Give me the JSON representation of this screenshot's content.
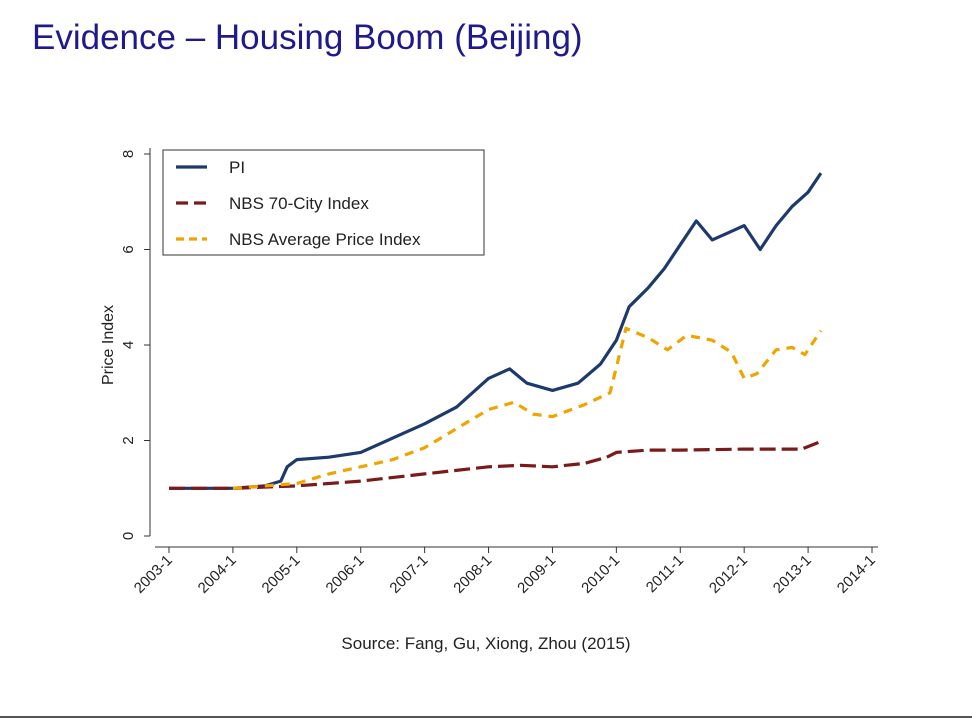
{
  "slide": {
    "title": "Evidence – Housing Boom (Beijing)",
    "source": "Source: Fang, Gu, Xiong, Zhou (2015)"
  },
  "colors": {
    "title": "#1f1a8c",
    "pi": "#1c3a6b",
    "nbs70": "#7a1a1a",
    "nbsavg": "#f0a400"
  },
  "chart_data": {
    "type": "line",
    "ylabel": "Price Index",
    "xlabel": "",
    "ylim": [
      0,
      8
    ],
    "yticks": [
      "0",
      "2",
      "4",
      "6",
      "8"
    ],
    "xticks": [
      "2003-1",
      "2004-1",
      "2005-1",
      "2006-1",
      "2007-1",
      "2008-1",
      "2009-1",
      "2010-1",
      "2011-1",
      "2012-1",
      "2013-1",
      "2014-1"
    ],
    "xlim": [
      2003.0,
      2014.0
    ],
    "legend_position": "top-left",
    "series": [
      {
        "name": "PI",
        "style": "solid",
        "color": "#1c3a6b",
        "points": [
          [
            2003.0,
            1.0
          ],
          [
            2003.5,
            1.0
          ],
          [
            2004.0,
            1.0
          ],
          [
            2004.5,
            1.05
          ],
          [
            2004.75,
            1.15
          ],
          [
            2004.85,
            1.45
          ],
          [
            2005.0,
            1.6
          ],
          [
            2005.5,
            1.65
          ],
          [
            2006.0,
            1.75
          ],
          [
            2006.5,
            2.05
          ],
          [
            2007.0,
            2.35
          ],
          [
            2007.5,
            2.7
          ],
          [
            2008.0,
            3.3
          ],
          [
            2008.33,
            3.5
          ],
          [
            2008.6,
            3.2
          ],
          [
            2009.0,
            3.05
          ],
          [
            2009.4,
            3.2
          ],
          [
            2009.75,
            3.6
          ],
          [
            2010.0,
            4.1
          ],
          [
            2010.2,
            4.8
          ],
          [
            2010.5,
            5.2
          ],
          [
            2010.75,
            5.6
          ],
          [
            2011.0,
            6.1
          ],
          [
            2011.25,
            6.6
          ],
          [
            2011.5,
            6.2
          ],
          [
            2011.75,
            6.35
          ],
          [
            2012.0,
            6.5
          ],
          [
            2012.25,
            6.0
          ],
          [
            2012.5,
            6.5
          ],
          [
            2012.75,
            6.9
          ],
          [
            2013.0,
            7.2
          ],
          [
            2013.2,
            7.6
          ]
        ]
      },
      {
        "name": "NBS 70-City Index",
        "style": "longdash",
        "color": "#7a1a1a",
        "points": [
          [
            2003.0,
            1.0
          ],
          [
            2004.0,
            1.0
          ],
          [
            2005.0,
            1.05
          ],
          [
            2006.0,
            1.15
          ],
          [
            2007.0,
            1.3
          ],
          [
            2008.0,
            1.45
          ],
          [
            2008.5,
            1.48
          ],
          [
            2009.0,
            1.45
          ],
          [
            2009.5,
            1.52
          ],
          [
            2009.85,
            1.65
          ],
          [
            2010.0,
            1.75
          ],
          [
            2010.5,
            1.8
          ],
          [
            2011.0,
            1.8
          ],
          [
            2012.0,
            1.82
          ],
          [
            2012.9,
            1.82
          ],
          [
            2013.2,
            1.98
          ]
        ]
      },
      {
        "name": "NBS Average Price Index",
        "style": "dash",
        "color": "#f0a400",
        "points": [
          [
            2004.0,
            1.0
          ],
          [
            2004.5,
            1.05
          ],
          [
            2005.0,
            1.1
          ],
          [
            2005.5,
            1.3
          ],
          [
            2006.0,
            1.45
          ],
          [
            2006.5,
            1.6
          ],
          [
            2007.0,
            1.85
          ],
          [
            2007.5,
            2.25
          ],
          [
            2008.0,
            2.65
          ],
          [
            2008.4,
            2.8
          ],
          [
            2008.7,
            2.55
          ],
          [
            2009.0,
            2.5
          ],
          [
            2009.5,
            2.75
          ],
          [
            2009.9,
            3.0
          ],
          [
            2010.15,
            4.35
          ],
          [
            2010.5,
            4.15
          ],
          [
            2010.8,
            3.9
          ],
          [
            2011.1,
            4.2
          ],
          [
            2011.5,
            4.1
          ],
          [
            2011.8,
            3.85
          ],
          [
            2012.0,
            3.3
          ],
          [
            2012.2,
            3.4
          ],
          [
            2012.5,
            3.9
          ],
          [
            2012.75,
            3.95
          ],
          [
            2012.95,
            3.8
          ],
          [
            2013.2,
            4.3
          ]
        ]
      }
    ]
  }
}
